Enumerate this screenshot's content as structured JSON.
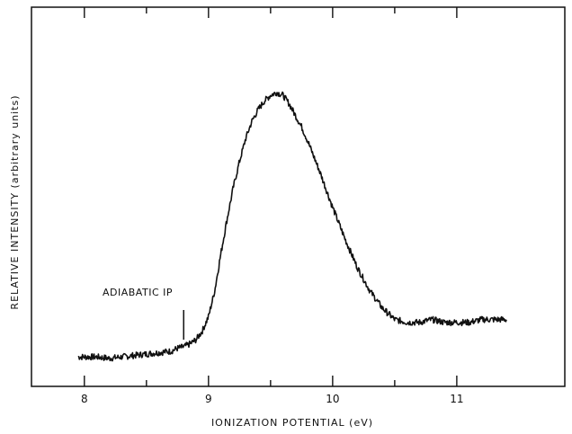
{
  "chart_data": {
    "type": "line",
    "title": "",
    "xlabel": "IONIZATION POTENTIAL   (eV)",
    "ylabel": "RELATIVE INTENSITY   (arbitrary units)",
    "xlim": [
      7.9,
      11.45
    ],
    "ylim": [
      0,
      1
    ],
    "x_ticks": [
      8,
      9,
      10,
      11
    ],
    "x_tick_labels": [
      "8",
      "9",
      "10",
      "11"
    ],
    "y_tick_labels": [],
    "grid": false,
    "legend": "none",
    "annotation": {
      "text": "ADIABATIC IP",
      "x": 8.8
    },
    "series": [
      {
        "x": [
          7.95,
          8.1,
          8.2,
          8.3,
          8.4,
          8.5,
          8.6,
          8.7,
          8.75,
          8.8,
          8.85,
          8.9,
          8.95,
          9.0,
          9.05,
          9.1,
          9.15,
          9.2,
          9.25,
          9.3,
          9.35,
          9.4,
          9.45,
          9.5,
          9.55,
          9.6,
          9.65,
          9.7,
          9.75,
          9.8,
          9.9,
          10.0,
          10.1,
          10.2,
          10.3,
          10.4,
          10.5,
          10.6,
          10.7,
          10.8,
          10.9,
          11.0,
          11.1,
          11.2,
          11.3,
          11.4
        ],
        "values": [
          0.04,
          0.04,
          0.035,
          0.04,
          0.045,
          0.05,
          0.055,
          0.06,
          0.07,
          0.075,
          0.085,
          0.1,
          0.13,
          0.18,
          0.27,
          0.4,
          0.52,
          0.63,
          0.72,
          0.8,
          0.86,
          0.9,
          0.93,
          0.95,
          0.96,
          0.95,
          0.92,
          0.88,
          0.84,
          0.79,
          0.68,
          0.56,
          0.45,
          0.35,
          0.27,
          0.21,
          0.17,
          0.16,
          0.16,
          0.17,
          0.16,
          0.16,
          0.16,
          0.17,
          0.17,
          0.17
        ]
      }
    ]
  }
}
